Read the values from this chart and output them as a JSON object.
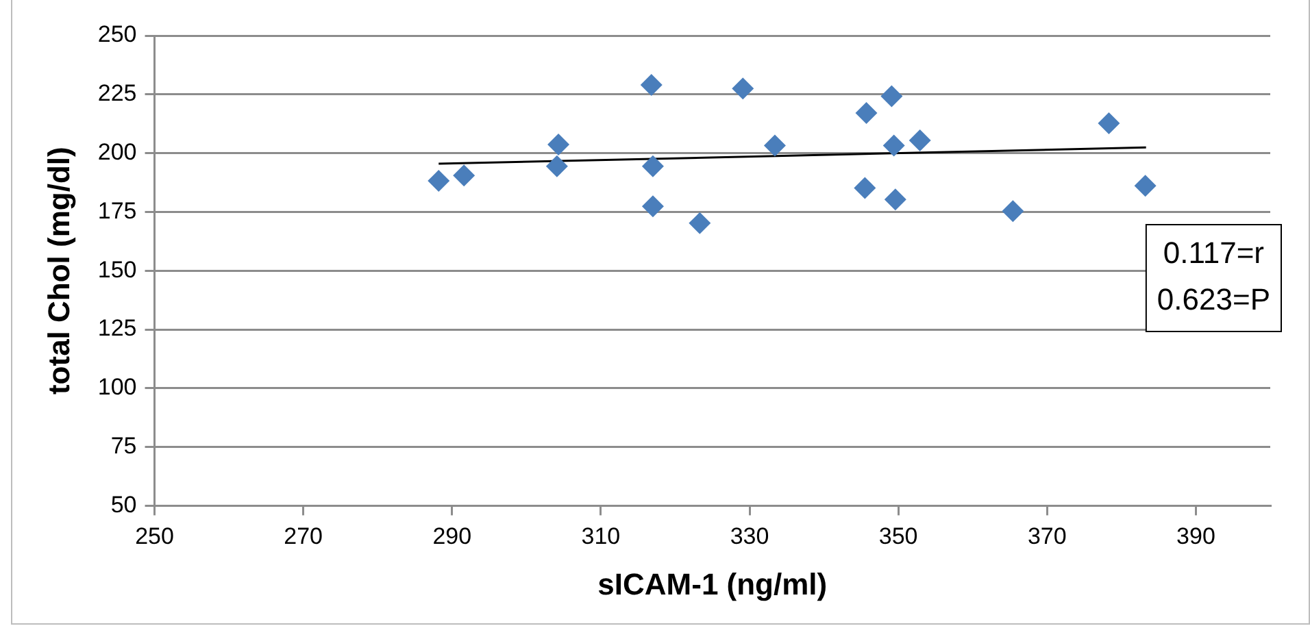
{
  "chart_data": {
    "type": "scatter",
    "xlabel": "sICAM-1 (ng/ml)",
    "ylabel": "total Chol (mg/dl)",
    "xlim": [
      250,
      400
    ],
    "xticks": [
      250,
      270,
      290,
      310,
      330,
      350,
      370,
      390
    ],
    "ylim": [
      50,
      250
    ],
    "yticks": [
      50,
      75,
      100,
      125,
      150,
      175,
      200,
      225,
      250
    ],
    "grid": "y",
    "marker": "diamond",
    "annotations": [
      "0.117=r",
      "0.623=P"
    ],
    "series": [
      {
        "type": "scatter",
        "color": "#4a7ebb",
        "x": [
          288.2,
          291.6,
          304.3,
          304.1,
          316.8,
          317.0,
          317.0,
          323.3,
          329.1,
          333.4,
          345.7,
          349.1,
          349.4,
          352.9,
          345.5,
          349.6,
          365.4,
          378.3,
          383.2
        ],
        "values": [
          188.2,
          190.5,
          203.7,
          194.4,
          229,
          194.4,
          177.4,
          170.2,
          227.5,
          203.2,
          217.1,
          224.2,
          203.2,
          205.4,
          185.2,
          180.3,
          175.3,
          212.7,
          186.1
        ]
      },
      {
        "type": "line",
        "color": "#000000",
        "marker": "none",
        "x": [
          288.2,
          383.3
        ],
        "values": [
          195.5,
          202.4
        ]
      }
    ]
  }
}
